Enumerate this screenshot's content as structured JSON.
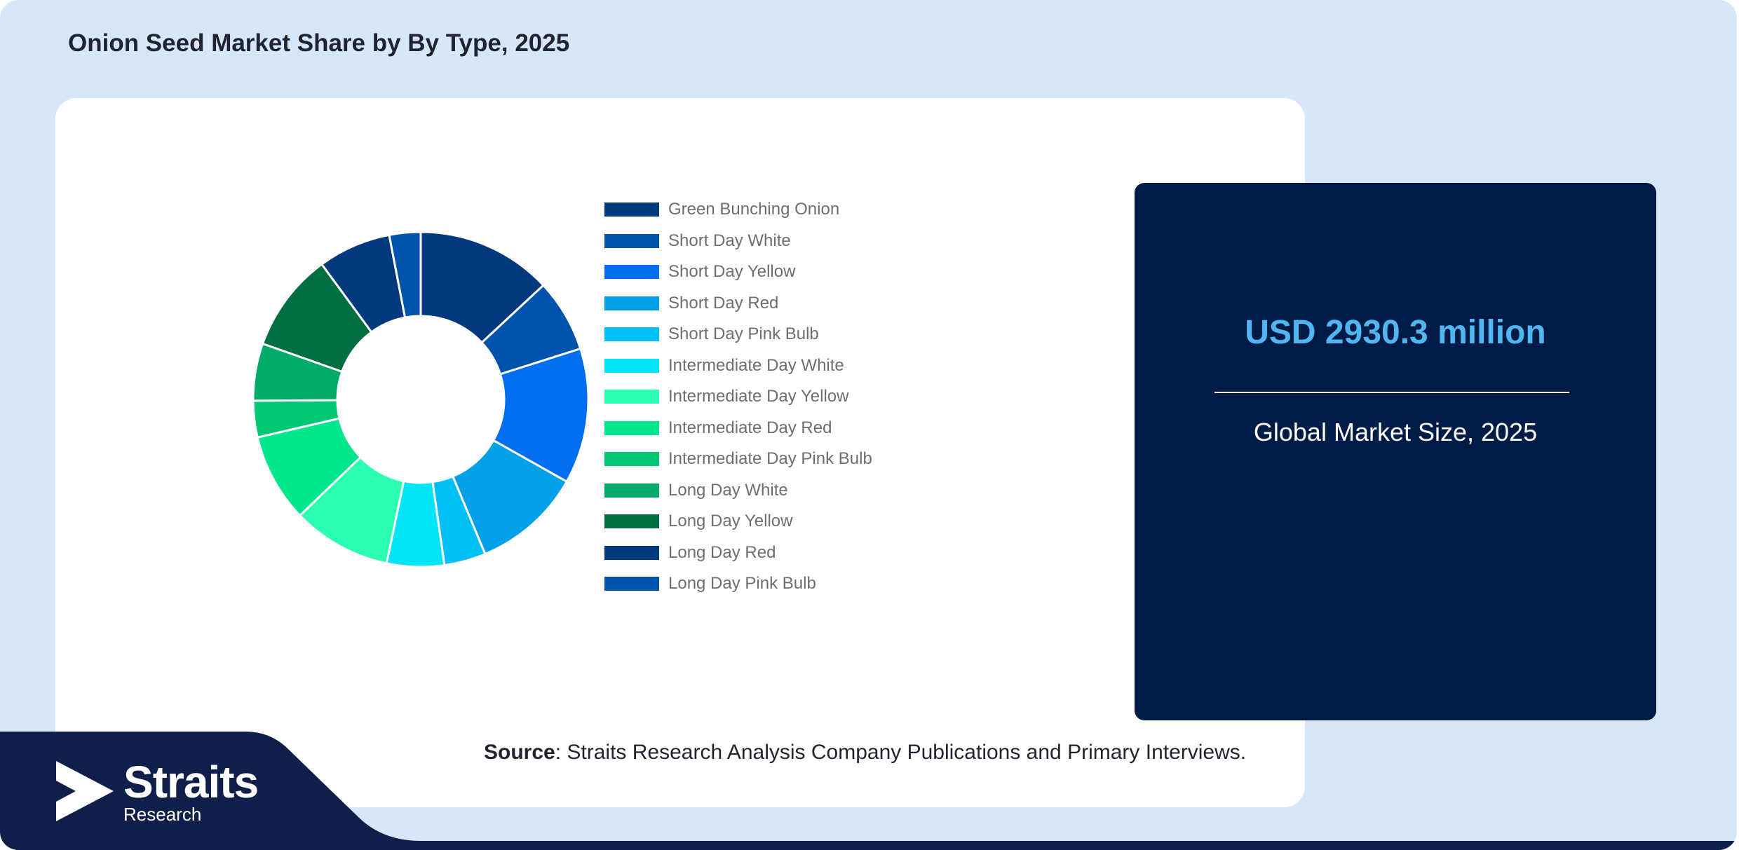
{
  "title": "Onion Seed Market Share by By Type, 2025",
  "stat": {
    "value": "USD 2930.3 million",
    "label": "Global Market Size, 2025"
  },
  "source": {
    "prefix": "Source",
    "text": ": Straits Research Analysis Company Publications and Primary Interviews."
  },
  "logo": {
    "name": "Straits",
    "sub": "Research"
  },
  "colors": {
    "page_background": "#d8e6f9",
    "stat_card": "#001c46",
    "stat_value": "#4fb6f2",
    "bottom_band": "#101f4a"
  },
  "chart_data": {
    "type": "pie",
    "variant": "donut",
    "legend_position": "right",
    "categories": [
      "Green Bunching Onion",
      "Short Day White",
      "Short Day Yellow",
      "Short Day Red",
      "Short Day Pink Bulb",
      "Intermediate Day White",
      "Intermediate Day Yellow",
      "Intermediate Day Red",
      "Intermediate Day Pink Bulb",
      "Long Day White",
      "Long Day Yellow",
      "Long Day Red",
      "Long Day Pink Bulb"
    ],
    "values": [
      13.0,
      7.0,
      13.0,
      10.5,
      4.0,
      5.5,
      9.5,
      8.5,
      3.5,
      5.5,
      9.5,
      7.0,
      3.0
    ],
    "unit": "%",
    "colors": [
      "#003a7d",
      "#0053ac",
      "#006ef0",
      "#00a0e6",
      "#00bff5",
      "#00e5f5",
      "#2cffb4",
      "#00e68c",
      "#00c872",
      "#00aa69",
      "#006e41",
      "#003a7d",
      "#0053ac"
    ]
  }
}
